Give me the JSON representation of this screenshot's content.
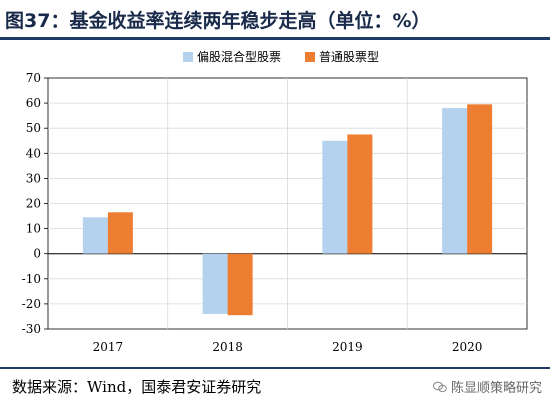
{
  "title": "图37：基金收益率连续两年稳步走高（单位：%）",
  "source": "数据来源：Wind，国泰君安证券研究",
  "watermark": "陈显顺策略研究",
  "colors": {
    "series1": "#b4d1ee",
    "series2": "#ed7d31",
    "title_rule": "#1f3b63"
  },
  "chart_data": {
    "type": "bar",
    "categories": [
      "2017",
      "2018",
      "2019",
      "2020"
    ],
    "series": [
      {
        "name": "偏股混合型股票",
        "values": [
          14.5,
          -24,
          45,
          58
        ]
      },
      {
        "name": "普通股票型",
        "values": [
          16.5,
          -24.5,
          47.5,
          59.5
        ]
      }
    ],
    "ylim": [
      -30,
      70
    ],
    "yticks": [
      -30,
      -20,
      -10,
      0,
      10,
      20,
      30,
      40,
      50,
      60,
      70
    ],
    "grid": true,
    "legend": "top-center"
  }
}
